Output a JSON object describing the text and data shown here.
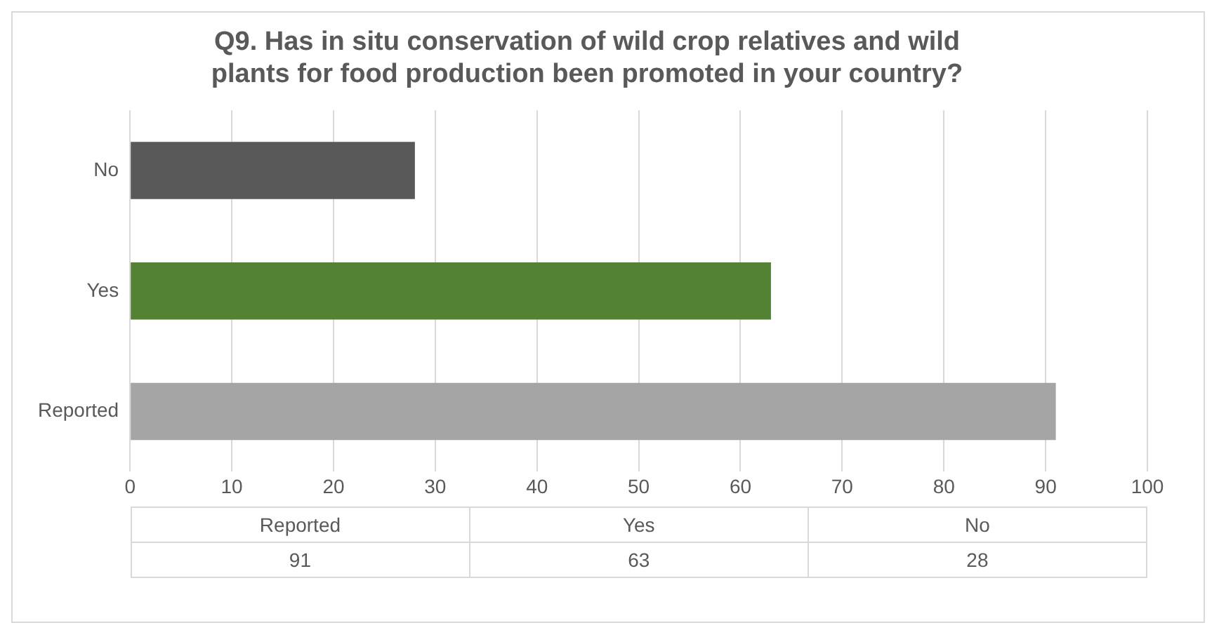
{
  "chart_data": [
    {
      "type": "bar",
      "orientation": "horizontal",
      "title": "Q9. Has in situ conservation of wild crop relatives and wild plants for food production been promoted in your country?",
      "categories": [
        "No",
        "Yes",
        "Reported"
      ],
      "values": [
        28,
        63,
        91
      ],
      "colors": [
        "#595959",
        "#548235",
        "#a5a5a5"
      ],
      "xlim": [
        0,
        100
      ],
      "xticks": [
        0,
        10,
        20,
        30,
        40,
        50,
        60,
        70,
        80,
        90,
        100
      ],
      "grid": "x",
      "legend": false
    },
    {
      "type": "other",
      "annotations": [
        "Reported",
        "Yes",
        "No",
        "91",
        "63",
        "28"
      ]
    }
  ]
}
